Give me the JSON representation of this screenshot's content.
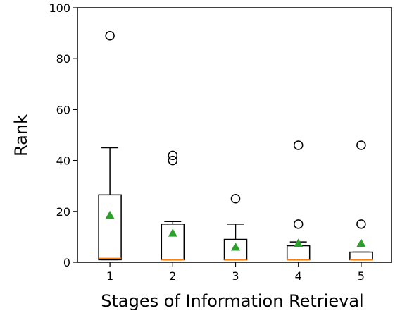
{
  "chart_data": {
    "type": "box",
    "xlabel": "Stages of Information Retrieval",
    "ylabel": "Rank",
    "ylim": [
      0,
      100
    ],
    "yticks": [
      0,
      20,
      40,
      60,
      80,
      100
    ],
    "categories": [
      "1",
      "2",
      "3",
      "4",
      "5"
    ],
    "grid": false,
    "boxes": [
      {
        "category": "1",
        "whisker_low": 1,
        "q1": 1,
        "median": 1.5,
        "q3": 26.5,
        "whisker_high": 45,
        "mean": 18.5,
        "outliers": [
          89
        ]
      },
      {
        "category": "2",
        "whisker_low": 1,
        "q1": 1,
        "median": 1,
        "q3": 15,
        "whisker_high": 16,
        "mean": 11.5,
        "outliers": [
          40,
          42
        ]
      },
      {
        "category": "3",
        "whisker_low": 1,
        "q1": 1,
        "median": 1,
        "q3": 9,
        "whisker_high": 15,
        "mean": 6,
        "outliers": [
          25
        ]
      },
      {
        "category": "4",
        "whisker_low": 1,
        "q1": 1,
        "median": 1,
        "q3": 6.5,
        "whisker_high": 8,
        "mean": 7.5,
        "outliers": [
          15,
          46
        ]
      },
      {
        "category": "5",
        "whisker_low": 1,
        "q1": 1,
        "median": 1,
        "q3": 4,
        "whisker_high": 4,
        "mean": 7.5,
        "outliers": [
          15,
          46
        ]
      }
    ],
    "colors": {
      "box": "#000000",
      "median": "#ff7f0e",
      "mean": "#2ca02c",
      "outlier": "#000000"
    }
  }
}
